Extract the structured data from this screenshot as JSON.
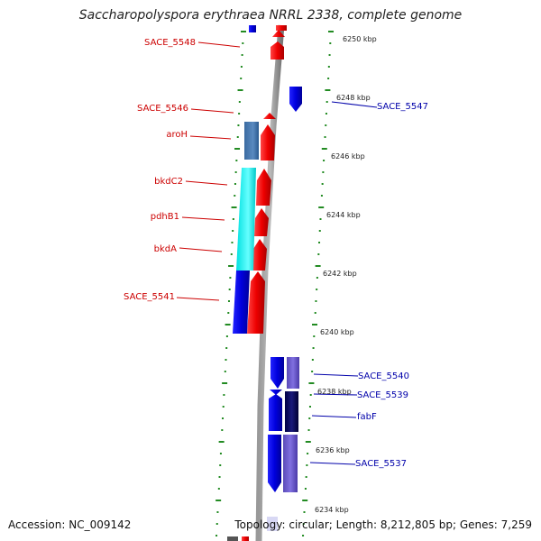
{
  "title": "Saccharopolyspora erythraea NRRL 2338, complete genome",
  "footer": {
    "accession": "Accession: NC_009142",
    "topology": "Topology: circular; Length: 8,212,805 bp; Genes: 7,259"
  },
  "kbp_labels": [
    "6250 kbp",
    "6248 kbp",
    "6246 kbp",
    "6244 kbp",
    "6242 kbp",
    "6240 kbp",
    "6238 kbp",
    "6236 kbp",
    "6234 kbp"
  ],
  "genes_left": [
    "SACE_5548",
    "SACE_5546",
    "aroH",
    "bkdC2",
    "pdhB1",
    "bkdA",
    "SACE_5541"
  ],
  "genes_right": [
    "SACE_5547",
    "SACE_5540",
    "SACE_5539",
    "fabF",
    "SACE_5537"
  ],
  "colors": {
    "forward_cds": "#ee0000",
    "reverse_cds": "#0000dd",
    "cog_blue": "#4a7ab0",
    "cog_cyan": "#00f0f0",
    "cog_purple": "#6a5acd",
    "label_red": "#cc0000",
    "label_blue": "#0000aa",
    "ticks": "#228b22",
    "backbone": "#888888"
  }
}
